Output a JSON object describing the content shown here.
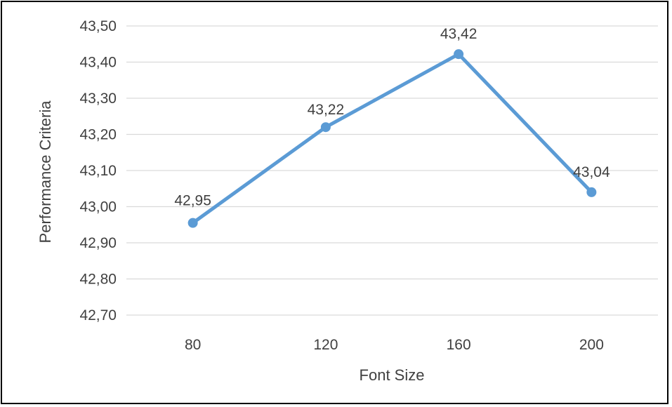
{
  "chart_data": {
    "type": "line",
    "title": "",
    "xlabel": "Font Size",
    "ylabel": "Performance Criteria",
    "categories": [
      "80",
      "120",
      "160",
      "200"
    ],
    "series": [
      {
        "values": [
          42.955,
          43.22,
          43.422,
          43.04
        ],
        "data_labels": [
          "42,95",
          "43,22",
          "43,42",
          "43,04"
        ],
        "color": "#5B9BD5"
      }
    ],
    "y_ticks": [
      42.7,
      42.8,
      42.9,
      43.0,
      43.1,
      43.2,
      43.3,
      43.4,
      43.5
    ],
    "y_tick_labels": [
      "42,70",
      "42,80",
      "42,90",
      "43,00",
      "43,10",
      "43,20",
      "43,30",
      "43,40",
      "43,50"
    ],
    "ylim": [
      42.7,
      43.5
    ],
    "grid": "horizontal",
    "legend": "none",
    "colors": {
      "line": "#5B9BD5",
      "grid": "#d9d9d9",
      "text": "#404040",
      "border": "#000000"
    }
  }
}
